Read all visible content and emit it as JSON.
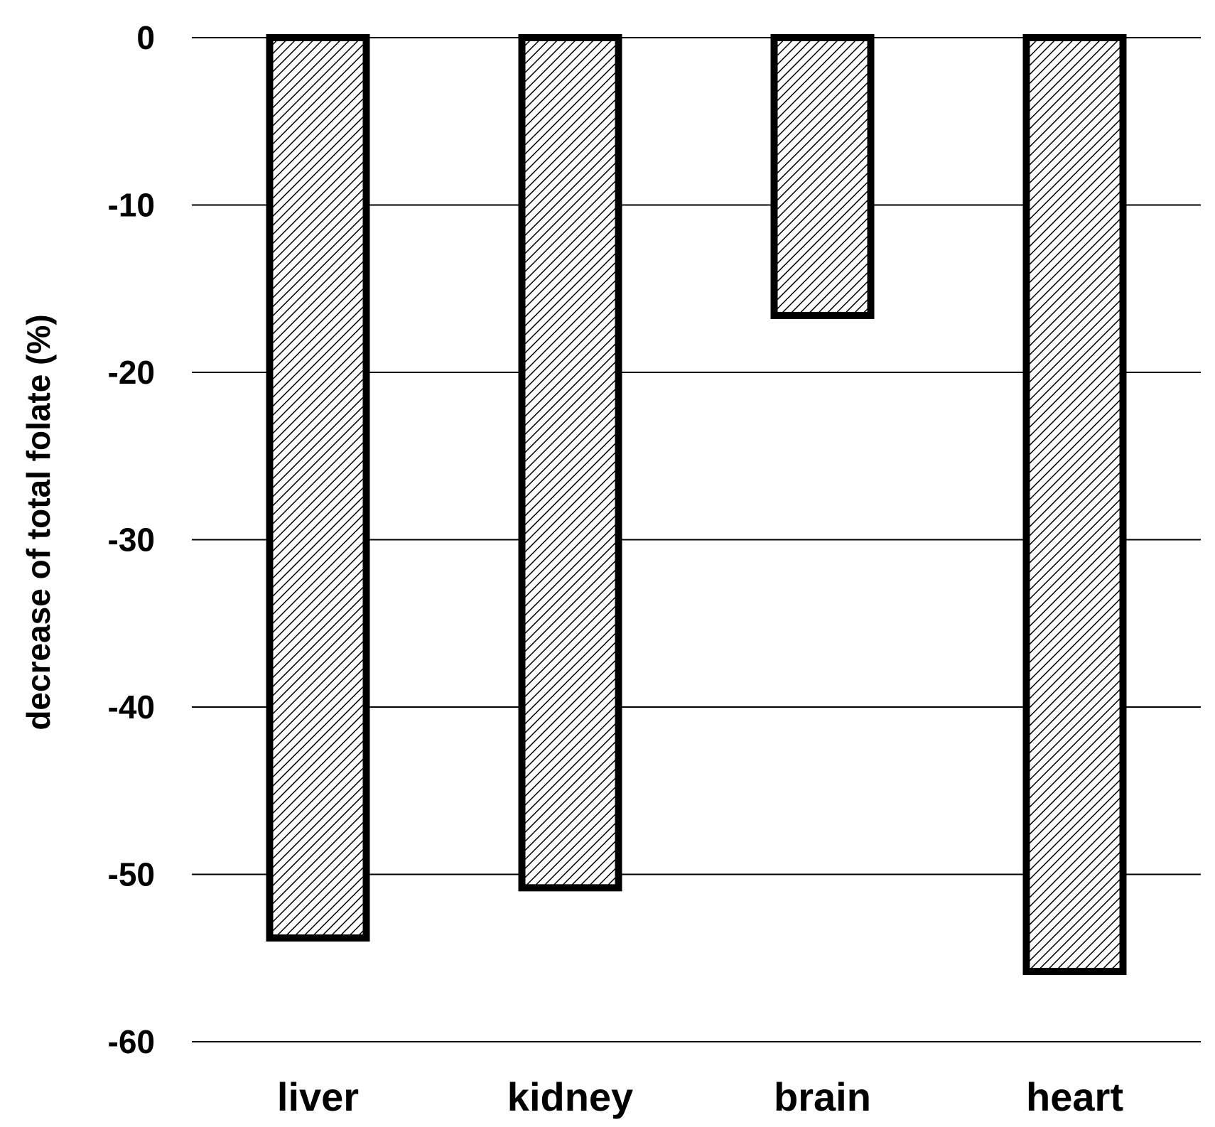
{
  "chart_data": {
    "type": "bar",
    "categories": [
      "liver",
      "kidney",
      "brain",
      "heart"
    ],
    "values": [
      -53.8,
      -50.8,
      -16.6,
      -55.8
    ],
    "ylabel": "decrease of total folate (%)",
    "xlabel": "",
    "ylim": [
      -60,
      0
    ],
    "yticks": [
      0,
      -10,
      -20,
      -30,
      -40,
      -50,
      -60
    ],
    "ytick_labels": [
      "0",
      "-10",
      "-20",
      "-30",
      "-40",
      "-50",
      "-60"
    ],
    "grid": true,
    "legend": "none",
    "bar_fill": "hatched",
    "colors": {
      "bar_stroke": "#000000",
      "hatch": "#000000",
      "bar_background": "#ffffff",
      "gridline": "#000000"
    }
  }
}
